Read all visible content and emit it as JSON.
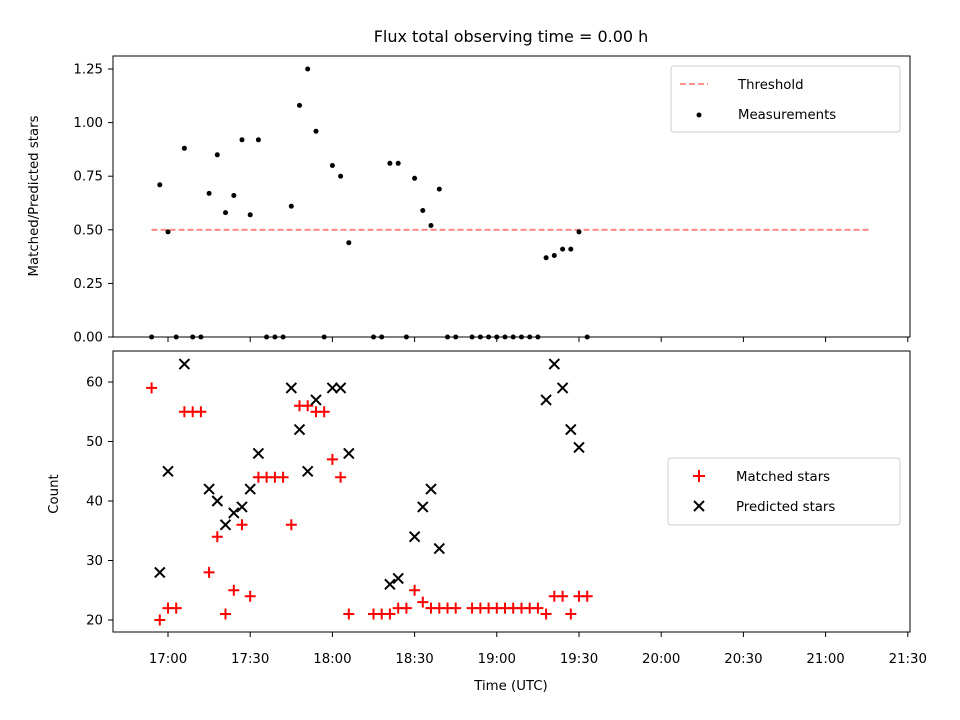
{
  "chart_data": [
    {
      "type": "scatter",
      "title": "Flux total observing time = 0.00 h",
      "xlabel": "",
      "ylabel": "Matched/Predicted stars",
      "ylim": [
        0,
        1.3
      ],
      "yticks": [
        "0.00",
        "0.25",
        "0.50",
        "0.75",
        "1.00",
        "1.25"
      ],
      "grid": false,
      "legend_position": "top-right",
      "threshold": {
        "name": "Threshold",
        "value": 0.5,
        "x_range": [
          "16:54",
          "21:16"
        ],
        "color": "#ff8080",
        "style": "dashed"
      },
      "series": [
        {
          "name": "Measurements",
          "color": "#000000",
          "marker": "dot",
          "points": [
            [
              "16:54",
              0.0
            ],
            [
              "16:57",
              0.71
            ],
            [
              "17:00",
              0.49
            ],
            [
              "17:03",
              0.0
            ],
            [
              "17:06",
              0.88
            ],
            [
              "17:09",
              0.0
            ],
            [
              "17:12",
              0.0
            ],
            [
              "17:15",
              0.67
            ],
            [
              "17:18",
              0.85
            ],
            [
              "17:21",
              0.58
            ],
            [
              "17:24",
              0.66
            ],
            [
              "17:27",
              0.92
            ],
            [
              "17:30",
              0.57
            ],
            [
              "17:33",
              0.92
            ],
            [
              "17:36",
              0.0
            ],
            [
              "17:39",
              0.0
            ],
            [
              "17:42",
              0.0
            ],
            [
              "17:45",
              0.61
            ],
            [
              "17:48",
              1.08
            ],
            [
              "17:51",
              1.25
            ],
            [
              "17:54",
              0.96
            ],
            [
              "17:57",
              0.0
            ],
            [
              "18:00",
              0.8
            ],
            [
              "18:03",
              0.75
            ],
            [
              "18:06",
              0.44
            ],
            [
              "18:15",
              0.0
            ],
            [
              "18:18",
              0.0
            ],
            [
              "18:21",
              0.81
            ],
            [
              "18:24",
              0.81
            ],
            [
              "18:27",
              0.0
            ],
            [
              "18:30",
              0.74
            ],
            [
              "18:33",
              0.59
            ],
            [
              "18:36",
              0.52
            ],
            [
              "18:39",
              0.69
            ],
            [
              "18:42",
              0.0
            ],
            [
              "18:45",
              0.0
            ],
            [
              "18:51",
              0.0
            ],
            [
              "18:54",
              0.0
            ],
            [
              "18:57",
              0.0
            ],
            [
              "19:00",
              0.0
            ],
            [
              "19:03",
              0.0
            ],
            [
              "19:06",
              0.0
            ],
            [
              "19:09",
              0.0
            ],
            [
              "19:12",
              0.0
            ],
            [
              "19:15",
              0.0
            ],
            [
              "19:18",
              0.37
            ],
            [
              "19:21",
              0.38
            ],
            [
              "19:24",
              0.41
            ],
            [
              "19:27",
              0.41
            ],
            [
              "19:30",
              0.49
            ],
            [
              "19:33",
              0.0
            ]
          ]
        }
      ]
    },
    {
      "type": "scatter",
      "title": "",
      "xlabel": "Time (UTC)",
      "ylabel": "Count",
      "ylim": [
        18,
        65
      ],
      "yticks": [
        "20",
        "30",
        "40",
        "50",
        "60"
      ],
      "xticks": [
        "17:00",
        "17:30",
        "18:00",
        "18:30",
        "19:00",
        "19:30",
        "20:00",
        "20:30",
        "21:00",
        "21:30"
      ],
      "grid": false,
      "legend_position": "center-right",
      "series": [
        {
          "name": "Matched stars",
          "color": "#ff0000",
          "marker": "plus",
          "points": [
            [
              "16:54",
              59
            ],
            [
              "16:57",
              20
            ],
            [
              "17:00",
              22
            ],
            [
              "17:03",
              22
            ],
            [
              "17:06",
              55
            ],
            [
              "17:09",
              55
            ],
            [
              "17:12",
              55
            ],
            [
              "17:15",
              28
            ],
            [
              "17:18",
              34
            ],
            [
              "17:21",
              21
            ],
            [
              "17:24",
              25
            ],
            [
              "17:27",
              36
            ],
            [
              "17:30",
              24
            ],
            [
              "17:33",
              44
            ],
            [
              "17:36",
              44
            ],
            [
              "17:39",
              44
            ],
            [
              "17:42",
              44
            ],
            [
              "17:45",
              36
            ],
            [
              "17:48",
              56
            ],
            [
              "17:51",
              56
            ],
            [
              "17:54",
              55
            ],
            [
              "17:57",
              55
            ],
            [
              "18:00",
              47
            ],
            [
              "18:03",
              44
            ],
            [
              "18:06",
              21
            ],
            [
              "18:15",
              21
            ],
            [
              "18:18",
              21
            ],
            [
              "18:21",
              21
            ],
            [
              "18:24",
              22
            ],
            [
              "18:27",
              22
            ],
            [
              "18:30",
              25
            ],
            [
              "18:33",
              23
            ],
            [
              "18:36",
              22
            ],
            [
              "18:39",
              22
            ],
            [
              "18:42",
              22
            ],
            [
              "18:45",
              22
            ],
            [
              "18:51",
              22
            ],
            [
              "18:54",
              22
            ],
            [
              "18:57",
              22
            ],
            [
              "19:00",
              22
            ],
            [
              "19:03",
              22
            ],
            [
              "19:06",
              22
            ],
            [
              "19:09",
              22
            ],
            [
              "19:12",
              22
            ],
            [
              "19:15",
              22
            ],
            [
              "19:18",
              21
            ],
            [
              "19:21",
              24
            ],
            [
              "19:24",
              24
            ],
            [
              "19:27",
              21
            ],
            [
              "19:30",
              24
            ],
            [
              "19:33",
              24
            ]
          ]
        },
        {
          "name": "Predicted stars",
          "color": "#000000",
          "marker": "x",
          "points": [
            [
              "16:57",
              28
            ],
            [
              "17:00",
              45
            ],
            [
              "17:06",
              63
            ],
            [
              "17:15",
              42
            ],
            [
              "17:18",
              40
            ],
            [
              "17:21",
              36
            ],
            [
              "17:24",
              38
            ],
            [
              "17:27",
              39
            ],
            [
              "17:30",
              42
            ],
            [
              "17:33",
              48
            ],
            [
              "17:45",
              59
            ],
            [
              "17:48",
              52
            ],
            [
              "17:51",
              45
            ],
            [
              "17:54",
              57
            ],
            [
              "18:00",
              59
            ],
            [
              "18:03",
              59
            ],
            [
              "18:06",
              48
            ],
            [
              "18:21",
              26
            ],
            [
              "18:24",
              27
            ],
            [
              "18:30",
              34
            ],
            [
              "18:33",
              39
            ],
            [
              "18:36",
              42
            ],
            [
              "18:39",
              32
            ],
            [
              "19:18",
              57
            ],
            [
              "19:21",
              63
            ],
            [
              "19:24",
              59
            ],
            [
              "19:27",
              52
            ],
            [
              "19:30",
              49
            ]
          ]
        }
      ]
    }
  ]
}
